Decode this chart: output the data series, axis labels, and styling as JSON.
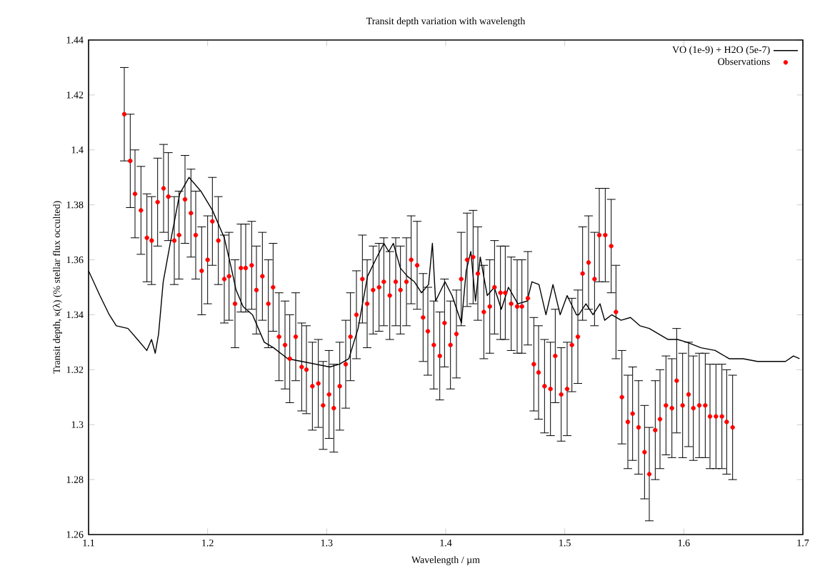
{
  "chart_data": {
    "type": "line",
    "title": "Transit depth variation with wavelength",
    "xlabel": "Wavelength / µm",
    "ylabel": "Transit depth, κ(λ) (% stellar flux occulted)",
    "xlim": [
      1.1,
      1.7
    ],
    "ylim": [
      1.26,
      1.44
    ],
    "xticks": [
      1.1,
      1.2,
      1.3,
      1.4,
      1.5,
      1.6,
      1.7
    ],
    "yticks": [
      1.26,
      1.28,
      1.3,
      1.32,
      1.34,
      1.36,
      1.38,
      1.4,
      1.42,
      1.44
    ],
    "grid": false,
    "legend": "top right",
    "series": [
      {
        "name": "VO (1e-9) + H2O (5e-7)",
        "color": "#000000",
        "marker": "none",
        "line_style": "solid",
        "x": [
          1.1,
          1.1095,
          1.1174,
          1.1233,
          1.1331,
          1.1411,
          1.1489,
          1.1529,
          1.156,
          1.1588,
          1.1627,
          1.1686,
          1.1765,
          1.1844,
          1.1943,
          1.2041,
          1.214,
          1.2199,
          1.2239,
          1.2298,
          1.2377,
          1.2476,
          1.2554,
          1.2673,
          1.2791,
          1.2909,
          1.3027,
          1.3107,
          1.3186,
          1.3264,
          1.3343,
          1.3422,
          1.3481,
          1.3521,
          1.356,
          1.3619,
          1.3678,
          1.3737,
          1.3796,
          1.3856,
          1.3888,
          1.3915,
          1.3994,
          1.4053,
          1.4132,
          1.4172,
          1.4211,
          1.425,
          1.429,
          1.4349,
          1.4408,
          1.4467,
          1.4527,
          1.4606,
          1.4684,
          1.4724,
          1.4783,
          1.4842,
          1.4901,
          1.4961,
          1.502,
          1.5098,
          1.5118,
          1.5178,
          1.5237,
          1.5296,
          1.5335,
          1.5394,
          1.5473,
          1.5552,
          1.5631,
          1.571,
          1.5789,
          1.5868,
          1.5947,
          1.6026,
          1.6144,
          1.6263,
          1.6381,
          1.6499,
          1.6618,
          1.6736,
          1.6854,
          1.6921,
          1.6972
        ],
        "values": [
          1.356,
          1.347,
          1.34,
          1.336,
          1.335,
          1.331,
          1.327,
          1.331,
          1.326,
          1.333,
          1.352,
          1.366,
          1.384,
          1.39,
          1.385,
          1.378,
          1.368,
          1.357,
          1.349,
          1.343,
          1.34,
          1.33,
          1.328,
          1.324,
          1.323,
          1.322,
          1.321,
          1.322,
          1.324,
          1.335,
          1.354,
          1.361,
          1.366,
          1.363,
          1.366,
          1.357,
          1.354,
          1.352,
          1.348,
          1.351,
          1.366,
          1.345,
          1.352,
          1.347,
          1.337,
          1.356,
          1.363,
          1.345,
          1.361,
          1.347,
          1.35,
          1.342,
          1.35,
          1.344,
          1.345,
          1.352,
          1.351,
          1.34,
          1.351,
          1.34,
          1.347,
          1.34,
          1.34,
          1.344,
          1.34,
          1.344,
          1.338,
          1.34,
          1.338,
          1.339,
          1.336,
          1.335,
          1.333,
          1.331,
          1.331,
          1.33,
          1.328,
          1.327,
          1.324,
          1.324,
          1.323,
          1.323,
          1.323,
          1.325,
          1.324
        ]
      },
      {
        "name": "Observations",
        "type": "scatter",
        "color": "#ff0000",
        "marker": "circle",
        "x": [
          1.13,
          1.135,
          1.139,
          1.144,
          1.149,
          1.153,
          1.158,
          1.163,
          1.167,
          1.172,
          1.176,
          1.181,
          1.186,
          1.19,
          1.195,
          1.2,
          1.204,
          1.209,
          1.214,
          1.218,
          1.223,
          1.228,
          1.232,
          1.237,
          1.241,
          1.246,
          1.251,
          1.255,
          1.26,
          1.265,
          1.269,
          1.274,
          1.279,
          1.283,
          1.288,
          1.293,
          1.297,
          1.302,
          1.306,
          1.311,
          1.316,
          1.32,
          1.325,
          1.33,
          1.334,
          1.339,
          1.344,
          1.348,
          1.353,
          1.358,
          1.362,
          1.367,
          1.371,
          1.376,
          1.381,
          1.385,
          1.39,
          1.395,
          1.399,
          1.404,
          1.409,
          1.413,
          1.418,
          1.423,
          1.427,
          1.432,
          1.437,
          1.441,
          1.446,
          1.45,
          1.455,
          1.46,
          1.464,
          1.469,
          1.474,
          1.478,
          1.483,
          1.488,
          1.492,
          1.497,
          1.502,
          1.506,
          1.511,
          1.515,
          1.52,
          1.525,
          1.529,
          1.534,
          1.539,
          1.543,
          1.548,
          1.553,
          1.557,
          1.562,
          1.567,
          1.571,
          1.576,
          1.58,
          1.585,
          1.59,
          1.594,
          1.599,
          1.604,
          1.608,
          1.613,
          1.618,
          1.622,
          1.627,
          1.632,
          1.636,
          1.641
        ],
        "values": [
          1.413,
          1.396,
          1.384,
          1.378,
          1.368,
          1.367,
          1.381,
          1.386,
          1.383,
          1.367,
          1.369,
          1.382,
          1.377,
          1.369,
          1.356,
          1.36,
          1.374,
          1.367,
          1.353,
          1.354,
          1.344,
          1.357,
          1.357,
          1.358,
          1.349,
          1.354,
          1.344,
          1.35,
          1.332,
          1.329,
          1.324,
          1.332,
          1.321,
          1.32,
          1.314,
          1.315,
          1.307,
          1.311,
          1.306,
          1.314,
          1.322,
          1.332,
          1.34,
          1.353,
          1.344,
          1.349,
          1.35,
          1.352,
          1.347,
          1.352,
          1.349,
          1.352,
          1.36,
          1.358,
          1.339,
          1.334,
          1.329,
          1.325,
          1.337,
          1.329,
          1.333,
          1.353,
          1.36,
          1.361,
          1.355,
          1.341,
          1.343,
          1.35,
          1.348,
          1.348,
          1.344,
          1.343,
          1.343,
          1.346,
          1.322,
          1.319,
          1.314,
          1.313,
          1.325,
          1.311,
          1.313,
          1.329,
          1.332,
          1.355,
          1.359,
          1.353,
          1.369,
          1.369,
          1.365,
          1.341,
          1.31,
          1.301,
          1.304,
          1.299,
          1.29,
          1.282,
          1.298,
          1.302,
          1.307,
          1.306,
          1.316,
          1.307,
          1.311,
          1.306,
          1.307,
          1.307,
          1.303,
          1.303,
          1.303,
          1.301,
          1.299
        ],
        "errors": [
          0.017,
          0.017,
          0.016,
          0.016,
          0.016,
          0.016,
          0.016,
          0.016,
          0.016,
          0.016,
          0.016,
          0.016,
          0.016,
          0.016,
          0.016,
          0.016,
          0.016,
          0.016,
          0.016,
          0.016,
          0.016,
          0.016,
          0.016,
          0.016,
          0.016,
          0.016,
          0.016,
          0.016,
          0.016,
          0.016,
          0.016,
          0.016,
          0.016,
          0.016,
          0.016,
          0.016,
          0.016,
          0.016,
          0.016,
          0.016,
          0.016,
          0.016,
          0.016,
          0.016,
          0.016,
          0.016,
          0.016,
          0.016,
          0.016,
          0.016,
          0.016,
          0.016,
          0.016,
          0.016,
          0.016,
          0.016,
          0.016,
          0.016,
          0.016,
          0.016,
          0.016,
          0.017,
          0.017,
          0.017,
          0.017,
          0.017,
          0.017,
          0.017,
          0.017,
          0.017,
          0.017,
          0.017,
          0.017,
          0.017,
          0.017,
          0.017,
          0.017,
          0.017,
          0.017,
          0.017,
          0.017,
          0.017,
          0.017,
          0.017,
          0.017,
          0.017,
          0.017,
          0.017,
          0.017,
          0.017,
          0.017,
          0.017,
          0.017,
          0.017,
          0.017,
          0.017,
          0.018,
          0.018,
          0.018,
          0.018,
          0.019,
          0.019,
          0.019,
          0.019,
          0.019,
          0.019,
          0.019,
          0.019,
          0.019,
          0.019,
          0.019
        ]
      }
    ]
  }
}
